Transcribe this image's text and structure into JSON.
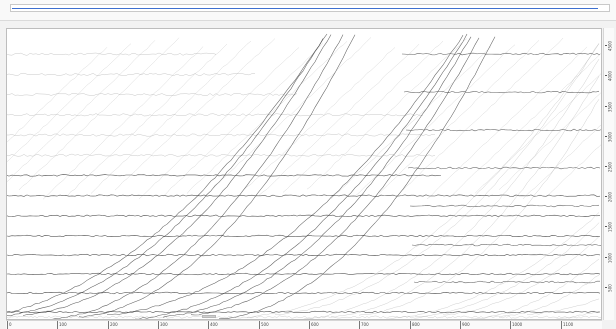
{
  "top_bar": {
    "progress": 0.98
  },
  "chart_data": {
    "type": "line",
    "x_ticks": [
      "0",
      "100",
      "200",
      "300",
      "400",
      "500",
      "600",
      "700",
      "800",
      "900",
      "1000",
      "1100"
    ],
    "y_ticks": [
      "500",
      "1000",
      "1500",
      "2000",
      "2500",
      "3000",
      "3500",
      "4000",
      "4500"
    ],
    "xlim": [
      0,
      1180
    ],
    "ylim": [
      0,
      4800
    ],
    "grid": false,
    "colors": {
      "trace": "#3a3a3a",
      "faint": "#9a9a9a",
      "accent": "#3d6fcf"
    }
  }
}
